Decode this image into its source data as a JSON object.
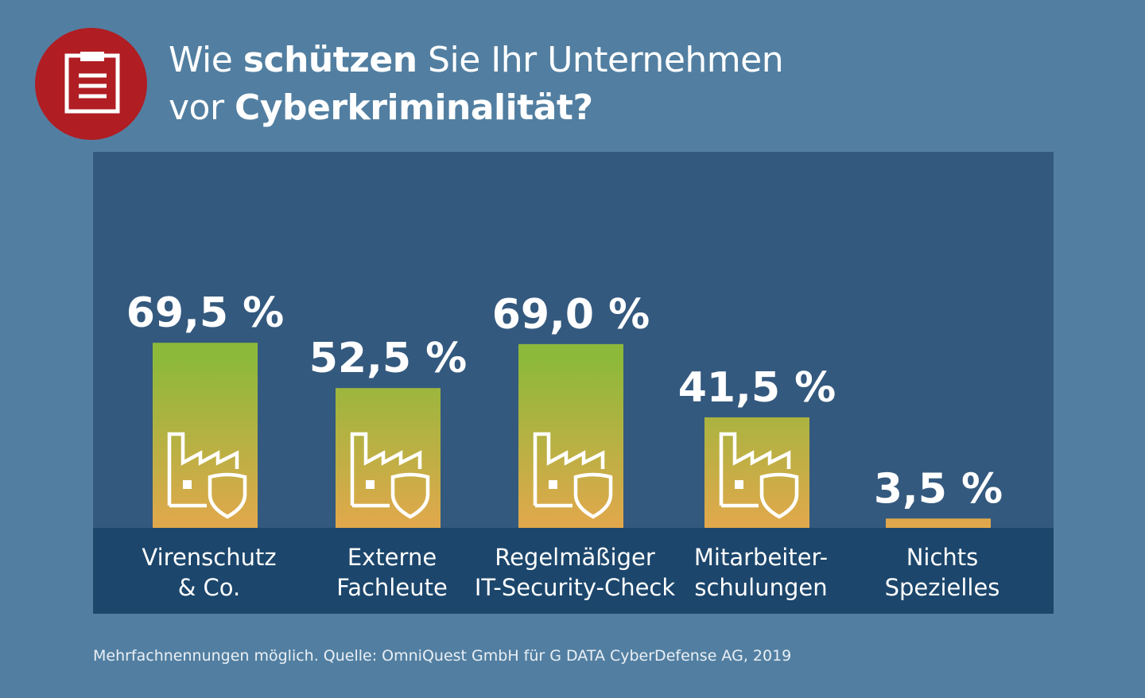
{
  "header": {
    "icon": "clipboard-icon",
    "badge_color": "#b01d23",
    "title_line1": {
      "pre": "Wie ",
      "bold": "schützen",
      "post": " Sie Ihr Unternehmen"
    },
    "title_line2": {
      "pre": "vor ",
      "bold": "Cyberkriminalität?"
    }
  },
  "chart_data": {
    "type": "bar",
    "categories": [
      [
        "Virenschutz",
        "& Co."
      ],
      [
        "Externe",
        "Fachleute"
      ],
      [
        "Regelmäßiger",
        "IT-Security-Check"
      ],
      [
        "Mitarbeiter-",
        "schulungen"
      ],
      [
        "Nichts",
        "Spezielles"
      ]
    ],
    "values": [
      69.5,
      52.5,
      69.0,
      41.5,
      3.5
    ],
    "value_labels": [
      "69,5 %",
      "52,5 %",
      "69,0 %",
      "41,5 %",
      "3,5 %"
    ],
    "ylim": [
      0,
      100
    ],
    "bar_icon": "factory-shield-icon",
    "colors": {
      "bar_top": "#8db93a",
      "bar_bottom": "#e2a84c",
      "panel": "#34597e",
      "band": "#1c466c"
    }
  },
  "footer": {
    "note": "Mehrfachnennungen möglich. Quelle: OmniQuest GmbH für G DATA CyberDefense AG, 2019"
  }
}
